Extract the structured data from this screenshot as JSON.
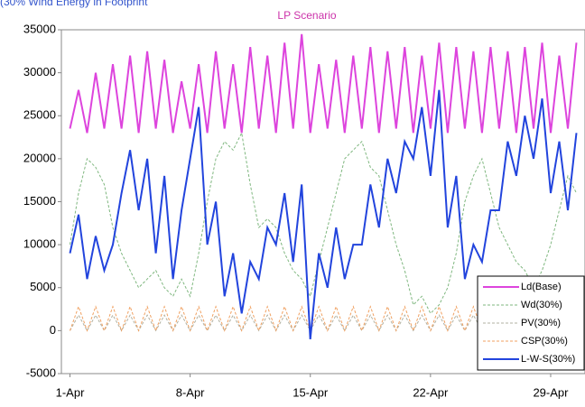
{
  "chart_data": {
    "type": "line",
    "subtitle": "(30% Wind Energy in Footprint",
    "title": "LP Scenario",
    "x": [
      1,
      1.5,
      2,
      2.5,
      3,
      3.5,
      4,
      4.5,
      5,
      5.5,
      6,
      6.5,
      7,
      7.5,
      8,
      8.5,
      9,
      9.5,
      10,
      10.5,
      11,
      11.5,
      12,
      12.5,
      13,
      13.5,
      14,
      14.5,
      15,
      15.5,
      16,
      16.5,
      17,
      17.5,
      18,
      18.5,
      19,
      19.5,
      20,
      20.5,
      21,
      21.5,
      22,
      22.5,
      23,
      23.5,
      24,
      24.5,
      25,
      25.5,
      26,
      26.5,
      27,
      27.5,
      28,
      28.5,
      29,
      29.5,
      30,
      30.5
    ],
    "xlim": [
      0.5,
      31
    ],
    "xticks": [
      {
        "value": 1,
        "label": "1-Apr"
      },
      {
        "value": 8,
        "label": "8-Apr"
      },
      {
        "value": 15,
        "label": "15-Apr"
      },
      {
        "value": 22,
        "label": "22-Apr"
      },
      {
        "value": 29,
        "label": "29-Apr"
      }
    ],
    "ylim": [
      -5000,
      35000
    ],
    "yticks": [
      -5000,
      0,
      5000,
      10000,
      15000,
      20000,
      25000,
      30000,
      35000
    ],
    "series": [
      {
        "name": "Ld(Base)",
        "color": "#dd44dd",
        "style": "solid",
        "values": [
          23500,
          28000,
          23000,
          30000,
          23500,
          31000,
          23500,
          32000,
          23000,
          32500,
          23500,
          31500,
          23000,
          29000,
          23500,
          31000,
          23000,
          32500,
          23500,
          31000,
          23000,
          33000,
          23500,
          32000,
          23000,
          33500,
          23500,
          34500,
          23000,
          31000,
          23500,
          31500,
          23000,
          32000,
          23500,
          33000,
          23000,
          32500,
          23500,
          33000,
          23000,
          32000,
          23500,
          33500,
          23000,
          33000,
          23500,
          32500,
          23000,
          33000,
          23500,
          32500,
          23000,
          33000,
          23500,
          33500,
          23000,
          32000,
          23500,
          33500
        ]
      },
      {
        "name": "Wd(30%)",
        "color": "#7fb77f",
        "style": "dashed",
        "values": [
          10000,
          16000,
          20000,
          19000,
          17000,
          12000,
          9000,
          7000,
          5000,
          6000,
          7000,
          5000,
          4000,
          6000,
          4000,
          9000,
          15000,
          20000,
          22000,
          21000,
          23000,
          17000,
          12000,
          13000,
          12000,
          9000,
          7000,
          6000,
          4000,
          8000,
          12000,
          16000,
          20000,
          21000,
          22000,
          19000,
          18000,
          14000,
          10000,
          7000,
          3000,
          4000,
          2000,
          3000,
          5000,
          9000,
          15000,
          18000,
          20000,
          16000,
          12000,
          10000,
          8000,
          7000,
          5000,
          7000,
          10000,
          14000,
          18000,
          16000
        ]
      },
      {
        "name": "PV(30%)",
        "color": "#b0b0a0",
        "style": "dashed",
        "values": [
          0,
          1800,
          0,
          1800,
          0,
          1800,
          0,
          1800,
          0,
          1800,
          0,
          1800,
          0,
          1800,
          0,
          1800,
          0,
          1800,
          0,
          1800,
          0,
          1800,
          0,
          1800,
          0,
          1800,
          0,
          1800,
          0,
          1800,
          0,
          1800,
          0,
          1800,
          0,
          1800,
          0,
          1800,
          0,
          1800,
          0,
          1800,
          0,
          1800,
          0,
          1800,
          0,
          1800,
          0,
          1800,
          0,
          1800,
          0,
          1800,
          0,
          1800,
          0,
          1800,
          0,
          1800
        ]
      },
      {
        "name": "CSP(30%)",
        "color": "#f0a060",
        "style": "dashed",
        "values": [
          0,
          2800,
          0,
          2800,
          0,
          2800,
          0,
          2800,
          0,
          2800,
          0,
          2800,
          0,
          2800,
          0,
          2800,
          0,
          2800,
          0,
          2800,
          0,
          2800,
          0,
          2800,
          0,
          2800,
          0,
          2800,
          0,
          2800,
          0,
          2800,
          0,
          2800,
          0,
          2800,
          0,
          2800,
          0,
          2800,
          0,
          2800,
          0,
          2800,
          0,
          2800,
          0,
          2800,
          0,
          2800,
          0,
          2800,
          0,
          2800,
          0,
          2800,
          0,
          2800,
          0,
          2800
        ]
      },
      {
        "name": "L-W-S(30%)",
        "color": "#2244dd",
        "style": "solid",
        "values": [
          9000,
          13500,
          6000,
          11000,
          7000,
          10000,
          16000,
          21000,
          14000,
          20000,
          9000,
          18000,
          6000,
          14000,
          20000,
          26000,
          10000,
          15000,
          4000,
          9000,
          2000,
          8000,
          6000,
          12000,
          10000,
          16000,
          8000,
          17000,
          -1000,
          9000,
          5000,
          12000,
          6000,
          10000,
          10000,
          17000,
          12000,
          20000,
          16000,
          22000,
          20000,
          26000,
          18000,
          28000,
          12000,
          18000,
          6000,
          10000,
          8000,
          14000,
          14000,
          22000,
          18000,
          25000,
          20000,
          27000,
          16000,
          22000,
          14000,
          23000
        ]
      }
    ],
    "legend": "lower right"
  }
}
